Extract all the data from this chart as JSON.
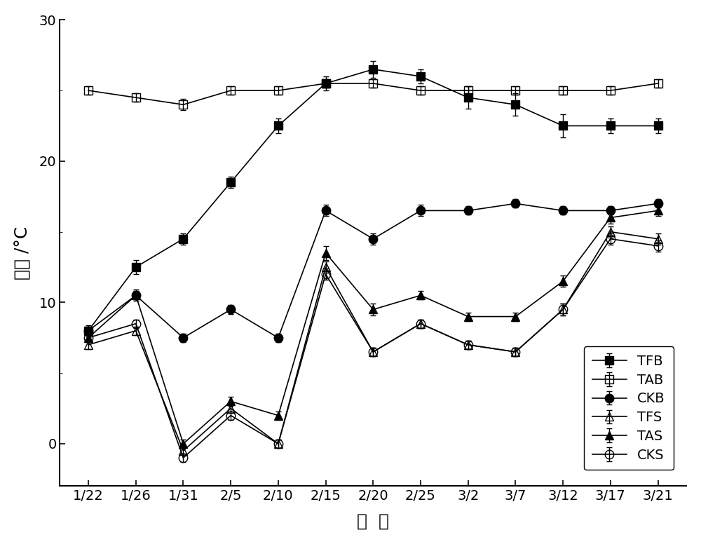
{
  "x_labels": [
    "1/22",
    "1/26",
    "1/31",
    "2/5",
    "2/10",
    "2/15",
    "2/20",
    "2/25",
    "3/2",
    "3/7",
    "3/12",
    "3/17",
    "3/21"
  ],
  "TFB": [
    8.0,
    12.5,
    14.5,
    18.5,
    22.5,
    25.5,
    26.5,
    26.0,
    24.5,
    24.0,
    22.5,
    22.5,
    22.5
  ],
  "TFB_err": [
    0.4,
    0.5,
    0.4,
    0.4,
    0.5,
    0.5,
    0.6,
    0.5,
    0.8,
    0.8,
    0.8,
    0.5,
    0.5
  ],
  "TAB": [
    25.0,
    24.5,
    24.0,
    25.0,
    25.0,
    25.5,
    25.5,
    25.0,
    25.0,
    25.0,
    25.0,
    25.0,
    25.5
  ],
  "TAB_err": [
    0.3,
    0.3,
    0.4,
    0.3,
    0.3,
    0.3,
    0.3,
    0.3,
    0.3,
    0.3,
    0.3,
    0.3,
    0.3
  ],
  "CKB": [
    8.0,
    10.5,
    7.5,
    9.5,
    7.5,
    16.5,
    14.5,
    16.5,
    16.5,
    17.0,
    16.5,
    16.5,
    17.0
  ],
  "CKB_err": [
    0.3,
    0.3,
    0.3,
    0.3,
    0.3,
    0.4,
    0.4,
    0.4,
    0.3,
    0.3,
    0.3,
    0.3,
    0.3
  ],
  "TFS": [
    7.0,
    8.0,
    -0.5,
    2.5,
    0.0,
    12.5,
    6.5,
    8.5,
    7.0,
    6.5,
    9.5,
    15.0,
    14.5
  ],
  "TFS_err": [
    0.3,
    0.3,
    0.3,
    0.3,
    0.3,
    0.4,
    0.3,
    0.3,
    0.3,
    0.3,
    0.4,
    0.4,
    0.4
  ],
  "TAS": [
    7.5,
    10.5,
    0.0,
    3.0,
    2.0,
    13.5,
    9.5,
    10.5,
    9.0,
    9.0,
    11.5,
    16.0,
    16.5
  ],
  "TAS_err": [
    0.3,
    0.4,
    0.3,
    0.3,
    0.3,
    0.5,
    0.4,
    0.3,
    0.3,
    0.3,
    0.4,
    0.4,
    0.4
  ],
  "CKS": [
    7.5,
    8.5,
    -1.0,
    2.0,
    0.0,
    12.0,
    6.5,
    8.5,
    7.0,
    6.5,
    9.5,
    14.5,
    14.0
  ],
  "CKS_err": [
    0.3,
    0.3,
    0.3,
    0.3,
    0.3,
    0.4,
    0.3,
    0.3,
    0.3,
    0.3,
    0.4,
    0.4,
    0.4
  ],
  "ylabel": "温度 /°C",
  "xlabel": "日  期",
  "ylim": [
    -3,
    30
  ],
  "yticks": [
    0,
    10,
    20,
    30
  ],
  "background_color": "#ffffff",
  "line_color": "#000000",
  "label_fontsize": 18,
  "tick_fontsize": 14,
  "legend_fontsize": 14
}
